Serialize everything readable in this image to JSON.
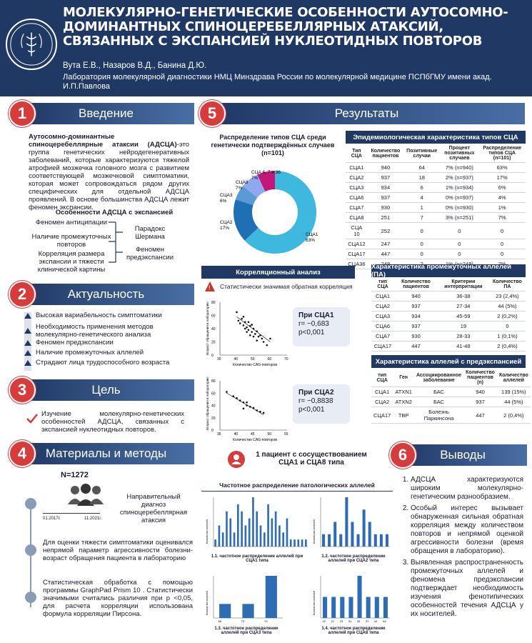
{
  "header": {
    "title": "Молекулярно-генетические особенности аутосомно-доминантных спиноцеребеллярных атаксий, связанных с экспансией нуклеотидных повторов",
    "authors": "Вута Е.В., Назаров В.Д., Банина Д.Ю.",
    "lab": "Лаборатория молекулярной диагностики НМЦ Минздрава России по молекулярной медицине ПСПбГМУ имени акад. И.П.Павлова",
    "logo_text": "MEDICINA ARS NOBILISSIMA 1897"
  },
  "sections": {
    "s1": {
      "num": "1",
      "label": "Введение"
    },
    "s2": {
      "num": "2",
      "label": "Актуальность"
    },
    "s3": {
      "num": "3",
      "label": "Цель"
    },
    "s4": {
      "num": "4",
      "label": "Материалы и методы"
    },
    "s5": {
      "num": "5",
      "label": "Результаты"
    },
    "s6": {
      "num": "6",
      "label": "Выводы"
    }
  },
  "intro": {
    "lead": "Аутосомно-доминантные спиноцеребеллярные атаксии (АДСЦА)",
    "text": "-это группа генетических нейродегенеративных заболеваний, которые характеризуются тяжелой атрофией мозжечка головного мозга с развитием соответствующей мозжечковой симптоматики, которая может сопровождаться рядом других специфических для отдельной АДСЦА проявлений. В основе большинства АДСЦА лежит феномен экспансии.",
    "subtitle": "Особенности АДСЦА с экспансией",
    "features_left": [
      "Феномен антиципации",
      "Наличие промежуточных повторов",
      "Корреляция размера экспансии и тяжести клинической картины"
    ],
    "features_right": [
      "Парадокс Шермана",
      "Феномен предэкспансии"
    ]
  },
  "relevance": {
    "items": [
      "Высокая вариабельность симптоматики",
      "Необходимость применения методов молекулярно-генетического анализа",
      "Феномен предэкспансии",
      "Наличие промежуточных аллелей",
      "Страдают лица трудоспособного возраста"
    ]
  },
  "goal": {
    "text": "Изучение молекулярно-генетических особенностей АДСЦА, связанных с экспансией нуклеотидных повторов."
  },
  "methods": {
    "n": "N=1272",
    "date_from": "01.2017г.",
    "date_to": "11.2021г.",
    "step1": "Направительный диагноз спиноцеребеллярная атаксия",
    "step2": "Для оценки тяжести симптоматики оценивался непрямой параметр агрессивности болезни- возраст обращения пациента в лабораторию",
    "step3": "Статистическая обработка с помощью программы GraphPad Prism 10 . Статистически значимыми считались различия при р <0,05, для расчета корреляции использована формула корреляции Пирсона."
  },
  "results": {
    "pie_title": "Распределение типов СЦА среди генетически подтверждённых случаев (n=101)",
    "pie_labels": [
      {
        "name": "СЦА1",
        "pct": "63%"
      },
      {
        "name": "СЦА2",
        "pct": "17%"
      },
      {
        "name": "СЦА3",
        "pct": "6%"
      },
      {
        "name": "СЦА8",
        "pct": "7%"
      },
      {
        "name": "СЦА 6, 7 и 36",
        "pct": "7%"
      }
    ],
    "epi_title": "Эпидемиологическая характеристика типов СЦА",
    "epi_head": [
      "Тип СЦА",
      "Количество пациентов",
      "Позитивные случаи",
      "Процент позитивных случаев",
      "Распределение типов СЦА (n=101)"
    ],
    "epi_rows": [
      [
        "СЦА1",
        "940",
        "64",
        "7% (n=940)",
        "63%"
      ],
      [
        "СЦА2",
        "937",
        "18",
        "2% (n=937)",
        "17%"
      ],
      [
        "СЦА3",
        "934",
        "6",
        "1% (n=934)",
        "6%"
      ],
      [
        "СЦА6",
        "937",
        "4",
        "0% (n=937)",
        "4%"
      ],
      [
        "СЦА7",
        "930",
        "1",
        "0% (n=930)",
        "1%"
      ],
      [
        "СЦА8",
        "251",
        "7",
        "3% (n=251)",
        "7%"
      ],
      [
        "СЦА 10",
        "252",
        "0",
        "0",
        "0"
      ],
      [
        "СЦА12",
        "247",
        "0",
        "0",
        "0"
      ],
      [
        "СЦА17",
        "447",
        "0",
        "0",
        "0"
      ],
      [
        "СЦА36",
        "248",
        "2",
        "1% (n=248)",
        "2%"
      ]
    ],
    "corr_title": "Корреляционный анализ",
    "corr_sub": "Статистически значимая обратная корреляция",
    "corr1": {
      "title": "При СЦА1",
      "r": "r= −0,683",
      "p": "p<0,001"
    },
    "corr2": {
      "title": "При СЦА2",
      "r": "r= −0,8838",
      "p": "p<0,001"
    },
    "scatter_y": "Возраст обращения в лабораторию",
    "scatter_x": "Количество CAG-повторов",
    "patient": "1 пациент с сосуществованием СЦА1 и СЦА8 типа",
    "pa_title": "Характеристика промежуточных аллелей (ПА)",
    "pa_head": [
      "тип СЦА",
      "Количество пациентов",
      "Критерии интерпритации",
      "Количество ПА"
    ],
    "pa_rows": [
      [
        "СЦА1",
        "940",
        "36-38",
        "23 (2,4%)"
      ],
      [
        "СЦА2",
        "937",
        "27-34",
        "44 (5%)"
      ],
      [
        "СЦА3",
        "934",
        "45-59",
        "2 (0,2%)"
      ],
      [
        "СЦА6",
        "937",
        "19",
        "0"
      ],
      [
        "СЦА7",
        "930",
        "28-33",
        "1 (0,1%)"
      ],
      [
        "СЦА17",
        "447",
        "41-48",
        "2 (0,4%)"
      ]
    ],
    "pre_title": "Характеристика аллелей с предэкспансией",
    "pre_head": [
      "тип СЦА",
      "Ген",
      "Ассоциированное заболевание",
      "Количество пациентов (n)",
      "Количество аллелей"
    ],
    "pre_rows": [
      [
        "СЦА1",
        "ATXN1",
        "БАС",
        "940",
        "139 (15%)"
      ],
      [
        "СЦА2",
        "ATXN2",
        "БАС",
        "937",
        "44 (5%)"
      ],
      [
        "СЦА17",
        "TBP",
        "Болезнь Паркинсона",
        "447",
        "2 (0,4%)"
      ]
    ],
    "freq_title": "Частотное распределение патологических аллелей",
    "freq_caps": [
      "1.1. частотное распределение аллелей при СЦА1 типа",
      "1.2. частотное распределение аллелей при СЦА2 типа",
      "1.3. частотное распределение аллелей при СЦА3 типа",
      "1.4. частотное распределение аллелей при СЦА8 типа"
    ],
    "freq_ylabel": "Количество аллелей",
    "freq_xlabel": "Количество CAG-повторов"
  },
  "conclusions": [
    "АДСЦА характеризуются широким молекулярно-генетическим разнообразием.",
    "Особый интерес вызывает обнаруженная сильная обратная корреляция между количеством повторов и непрямой оценкой агрессивности болезни (время обращения в лабораторию).",
    "Выявленная распространенность промежуточных аллелей и феномена предэкспансии подтверждает необходимость изучения фенотипических особенностей течения АДСЦА у их носителей."
  ],
  "colors": {
    "navy": "#1f3864",
    "red": "#d63c3c",
    "pie": [
      "#3fb8e0",
      "#1f6fb5",
      "#5b9bd5",
      "#8fa8f0",
      "#c2187a"
    ]
  },
  "chart_data": [
    {
      "type": "pie",
      "categories": [
        "СЦА1",
        "СЦА2",
        "СЦА3",
        "СЦА8",
        "СЦА 6, 7 и 36"
      ],
      "values": [
        63,
        17,
        6,
        7,
        7
      ]
    },
    {
      "type": "bar",
      "values": [
        1,
        3,
        2,
        5,
        4,
        2,
        6,
        5,
        3,
        4,
        7,
        5,
        3,
        2,
        6,
        4,
        5,
        3,
        2,
        4,
        1,
        1,
        1,
        1,
        1
      ]
    },
    {
      "type": "bar",
      "values": [
        1,
        1,
        2,
        1,
        4,
        2,
        1,
        3,
        2,
        1,
        1,
        1
      ]
    },
    {
      "type": "bar",
      "categories": [
        "68",
        "72",
        "73"
      ],
      "values": [
        1,
        1,
        3
      ]
    },
    {
      "type": "bar",
      "categories": [
        "20",
        "21",
        "23",
        "31",
        "34",
        "37",
        "41",
        "84"
      ],
      "values": [
        1,
        1,
        1,
        1,
        2,
        1,
        1,
        1
      ]
    }
  ]
}
